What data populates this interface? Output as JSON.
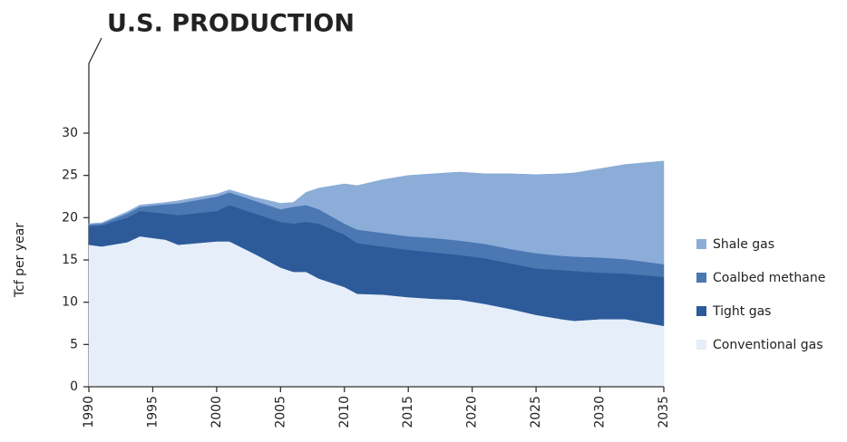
{
  "chart_data": {
    "type": "stacked-area",
    "title": "U.S. PRODUCTION",
    "y_label": "Tcf per year",
    "x": [
      1990,
      1991,
      1993,
      1994,
      1996,
      1997,
      2000,
      2001,
      2003,
      2005,
      2006,
      2007,
      2008,
      2010,
      2011,
      2013,
      2015,
      2017,
      2019,
      2021,
      2023,
      2025,
      2027,
      2028,
      2030,
      2032,
      2035
    ],
    "series": [
      {
        "name": "Conventional gas",
        "color": "#e6eef9",
        "values": [
          16.8,
          16.6,
          17.1,
          17.8,
          17.4,
          16.8,
          17.2,
          17.2,
          15.7,
          14.1,
          13.6,
          13.6,
          12.8,
          11.8,
          11.0,
          10.9,
          10.6,
          10.4,
          10.3,
          9.8,
          9.2,
          8.5,
          8.0,
          7.8,
          8.0,
          8.0,
          7.2
        ]
      },
      {
        "name": "Tight gas",
        "color": "#2d5a99",
        "values": [
          2.2,
          2.5,
          2.9,
          3.0,
          3.1,
          3.5,
          3.6,
          4.3,
          4.8,
          5.4,
          5.7,
          5.9,
          6.5,
          6.2,
          6.0,
          5.7,
          5.6,
          5.5,
          5.3,
          5.4,
          5.4,
          5.5,
          5.8,
          5.9,
          5.5,
          5.4,
          5.8
        ]
      },
      {
        "name": "Coalbed methane",
        "color": "#4b77b3",
        "values": [
          0.2,
          0.2,
          0.5,
          0.5,
          1.1,
          1.4,
          1.7,
          1.5,
          1.5,
          1.5,
          2.0,
          2.0,
          1.7,
          1.3,
          1.6,
          1.6,
          1.6,
          1.7,
          1.7,
          1.7,
          1.7,
          1.8,
          1.7,
          1.7,
          1.8,
          1.7,
          1.5
        ]
      },
      {
        "name": "Shale gas",
        "color": "#8badd8",
        "values": [
          0.1,
          0.1,
          0.2,
          0.2,
          0.2,
          0.3,
          0.3,
          0.3,
          0.4,
          0.7,
          0.5,
          1.5,
          2.5,
          4.7,
          5.2,
          6.3,
          7.2,
          7.6,
          8.1,
          8.3,
          8.9,
          9.3,
          9.7,
          9.9,
          10.5,
          11.2,
          12.2
        ]
      }
    ],
    "xlim": [
      1990,
      2035
    ],
    "xticks": [
      1990,
      1995,
      2000,
      2005,
      2010,
      2015,
      2020,
      2025,
      2030,
      2035
    ],
    "ylim": [
      0,
      30
    ],
    "yticks": [
      0,
      5,
      10,
      15,
      20,
      25,
      30
    ],
    "legend": "right"
  }
}
